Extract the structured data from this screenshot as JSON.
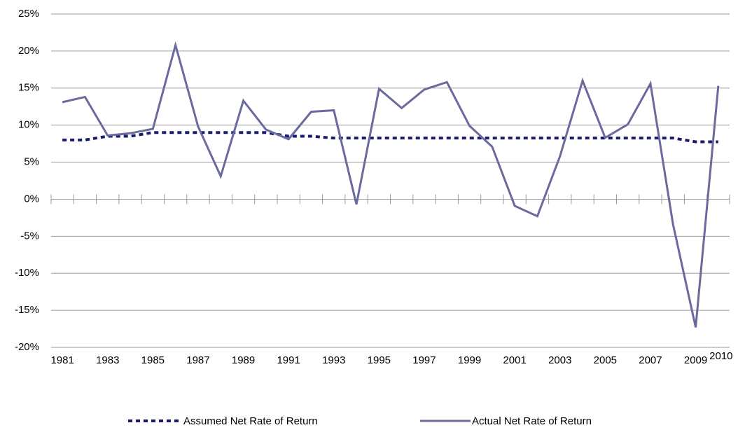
{
  "chart_data": {
    "type": "line",
    "categories": [
      "1981",
      null,
      "1983",
      null,
      "1985",
      null,
      "1987",
      null,
      "1989",
      null,
      "1991",
      null,
      "1993",
      null,
      "1995",
      null,
      "1997",
      null,
      "1999",
      null,
      "2001",
      null,
      "2003",
      null,
      "2005",
      null,
      "2007",
      null,
      "2009",
      "2010"
    ],
    "series": [
      {
        "name": "Assumed Net Rate of Return",
        "color": "#1b1b6b",
        "dashed": true,
        "values": [
          8.0,
          8.0,
          8.5,
          8.5,
          9.0,
          9.0,
          9.0,
          9.0,
          9.0,
          9.0,
          8.5,
          8.5,
          8.25,
          8.25,
          8.25,
          8.25,
          8.25,
          8.25,
          8.25,
          8.25,
          8.25,
          8.25,
          8.25,
          8.25,
          8.25,
          8.25,
          8.25,
          8.25,
          7.75,
          7.75
        ]
      },
      {
        "name": "Actual Net Rate of Return",
        "color": "#6a6a9f",
        "dashed": false,
        "values": [
          13.1,
          13.8,
          8.6,
          8.9,
          9.5,
          20.8,
          9.8,
          3.1,
          13.3,
          9.4,
          8.1,
          11.8,
          12.0,
          -0.7,
          14.9,
          12.3,
          14.8,
          15.8,
          9.9,
          7.1,
          -0.9,
          -2.3,
          5.8,
          16.0,
          8.3,
          10.1,
          15.6,
          -3.4,
          -17.3,
          15.3
        ]
      }
    ],
    "ylim": [
      -20,
      25
    ],
    "yticks": [
      {
        "value": -20,
        "label": "-20%"
      },
      {
        "value": -15,
        "label": "-15%"
      },
      {
        "value": -10,
        "label": "-10%"
      },
      {
        "value": -5,
        "label": "-5%"
      },
      {
        "value": 0,
        "label": "0%"
      },
      {
        "value": 5,
        "label": "5%"
      },
      {
        "value": 10,
        "label": "10%"
      },
      {
        "value": 15,
        "label": "15%"
      },
      {
        "value": 20,
        "label": "20%"
      },
      {
        "value": 25,
        "label": "25%"
      }
    ],
    "grid": true,
    "legend": "bottom"
  }
}
